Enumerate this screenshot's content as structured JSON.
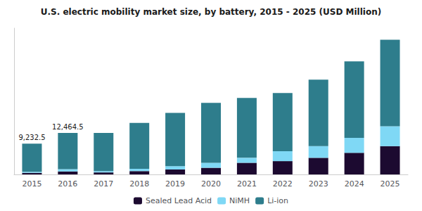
{
  "chart_data": {
    "type": "bar",
    "stacked": true,
    "title": "U.S. electric mobility market size, by battery, 2015 - 2025 (USD Million)",
    "categories": [
      "2015",
      "2016",
      "2017",
      "2018",
      "2019",
      "2020",
      "2021",
      "2022",
      "2023",
      "2024",
      "2025"
    ],
    "series": [
      {
        "name": "Sealed Lead Acid",
        "color": "#1c0a30",
        "values": [
          500,
          900,
          600,
          1000,
          1500,
          2000,
          3500,
          4000,
          5000,
          6500,
          8500
        ]
      },
      {
        "name": "NiMH",
        "color": "#7fd8f5",
        "values": [
          300,
          700,
          400,
          700,
          1000,
          1500,
          1500,
          3000,
          3500,
          4500,
          6000
        ]
      },
      {
        "name": "Li-ion",
        "color": "#2e7d8c",
        "values": [
          8432,
          10864,
          11500,
          13800,
          16000,
          18000,
          18000,
          17500,
          20000,
          23000,
          26000
        ]
      }
    ],
    "annotations": [
      {
        "x": "2015",
        "text": "9,232.5"
      },
      {
        "x": "2016",
        "text": "12,464.5"
      }
    ],
    "ylim": [
      0,
      44000
    ],
    "tick_labels": "x",
    "grid": false,
    "legend": "bottom"
  }
}
